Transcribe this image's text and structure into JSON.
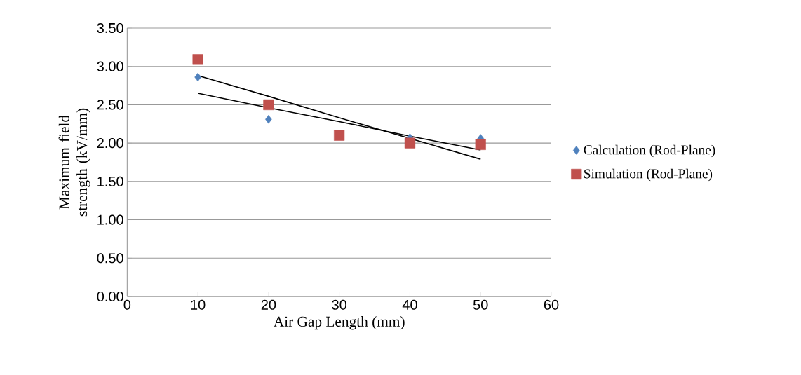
{
  "chart_data": {
    "type": "scatter",
    "xlabel": "Air Gap Length (mm)",
    "ylabel": "Maximum field strength (kV/mm)",
    "x": [
      10,
      20,
      30,
      40,
      50
    ],
    "series": [
      {
        "name": "Calculation (Rod-Plane)",
        "color": "#4f81bd",
        "marker": "diamond",
        "values": [
          2.86,
          2.31,
          null,
          2.07,
          2.06
        ]
      },
      {
        "name": "Simulation (Rod-Plane)",
        "color": "#c0504d",
        "marker": "square",
        "values": [
          3.09,
          2.5,
          2.1,
          2.0,
          1.98
        ]
      },
      {
        "type": "line",
        "color": "#000000",
        "marker": "none",
        "values": [
          2.65,
          2.46,
          2.28,
          2.09,
          1.91
        ]
      },
      {
        "type": "line",
        "color": "#000000",
        "marker": "none",
        "values": [
          2.88,
          2.61,
          2.33,
          2.06,
          1.79
        ]
      }
    ],
    "xlim": [
      0,
      60
    ],
    "xticks": [
      0,
      10,
      20,
      30,
      40,
      50,
      60
    ],
    "ylim": [
      0,
      3.5
    ],
    "yticks": [
      {
        "value": 0,
        "label": "0.00"
      },
      {
        "value": 0.5,
        "label": "0.50"
      },
      {
        "value": 1,
        "label": "1.00"
      },
      {
        "value": 1.5,
        "label": "1.50"
      },
      {
        "value": 2,
        "label": "2.00"
      },
      {
        "value": 2.5,
        "label": "2.50"
      },
      {
        "value": 3,
        "label": "3.00"
      },
      {
        "value": 3.5,
        "label": "3.50"
      }
    ],
    "grid": "y",
    "legend": "right"
  }
}
